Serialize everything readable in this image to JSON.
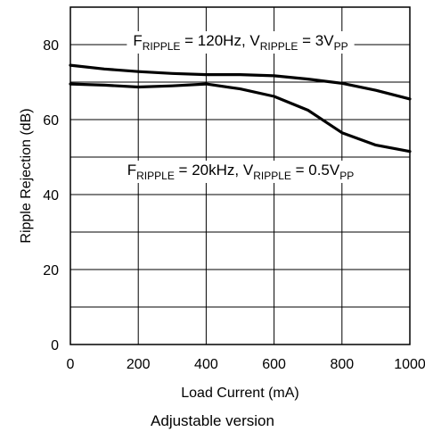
{
  "chart_data": {
    "type": "line",
    "title": "",
    "xlabel": "Load Current (mA)",
    "ylabel": "Ripple Rejection (dB)",
    "xlim": [
      0,
      1000
    ],
    "ylim": [
      0,
      90
    ],
    "x_ticks": [
      0,
      200,
      400,
      600,
      800,
      1000
    ],
    "x_tick_labels": [
      "0",
      "200",
      "400",
      "600",
      "800",
      "1000"
    ],
    "y_ticks": [
      0,
      20,
      40,
      60,
      80
    ],
    "y_tick_labels": [
      "0",
      "20",
      "40",
      "60",
      "80"
    ],
    "grid": true,
    "series": [
      {
        "x": [
          0,
          100,
          200,
          300,
          400,
          500,
          600,
          700,
          800,
          900,
          1000
        ],
        "y": [
          74.5,
          73.5,
          72.8,
          72.3,
          72.0,
          72.0,
          71.7,
          70.8,
          69.7,
          67.8,
          65.5
        ]
      },
      {
        "x": [
          0,
          100,
          200,
          300,
          400,
          500,
          600,
          700,
          800,
          900,
          1000
        ],
        "y": [
          69.5,
          69.2,
          68.7,
          69.0,
          69.5,
          68.2,
          66.2,
          62.5,
          56.5,
          53.2,
          51.5
        ]
      }
    ],
    "annotations": [
      {
        "parts": [
          [
            "F",
            "n"
          ],
          [
            "RIPPLE",
            "s"
          ],
          [
            " = 120Hz, V",
            "n"
          ],
          [
            "RIPPLE",
            "s"
          ],
          [
            " = 3V",
            "n"
          ],
          [
            "PP",
            "s"
          ]
        ]
      },
      {
        "parts": [
          [
            "F",
            "n"
          ],
          [
            "RIPPLE",
            "s"
          ],
          [
            " = 20kHz, V",
            "n"
          ],
          [
            "RIPPLE",
            "s"
          ],
          [
            " = 0.5V",
            "n"
          ],
          [
            "PP",
            "s"
          ]
        ]
      }
    ]
  },
  "caption": "Adjustable version"
}
